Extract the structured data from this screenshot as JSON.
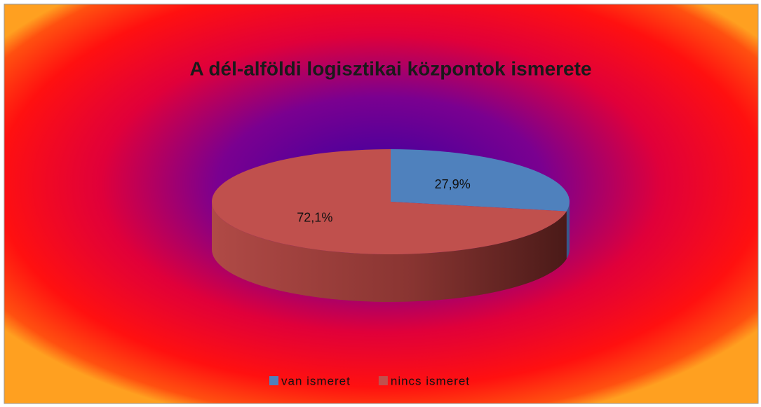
{
  "chart_data": {
    "type": "pie",
    "title": "A dél-alföldi logisztikai központok ismerete",
    "categories": [
      "van ismeret",
      "nincs ismeret"
    ],
    "values": [
      27.9,
      72.1
    ],
    "value_labels": [
      "27,9%",
      "72,1%"
    ],
    "colors": [
      "#4f81bd",
      "#c0504d"
    ],
    "legend": "bottom"
  }
}
